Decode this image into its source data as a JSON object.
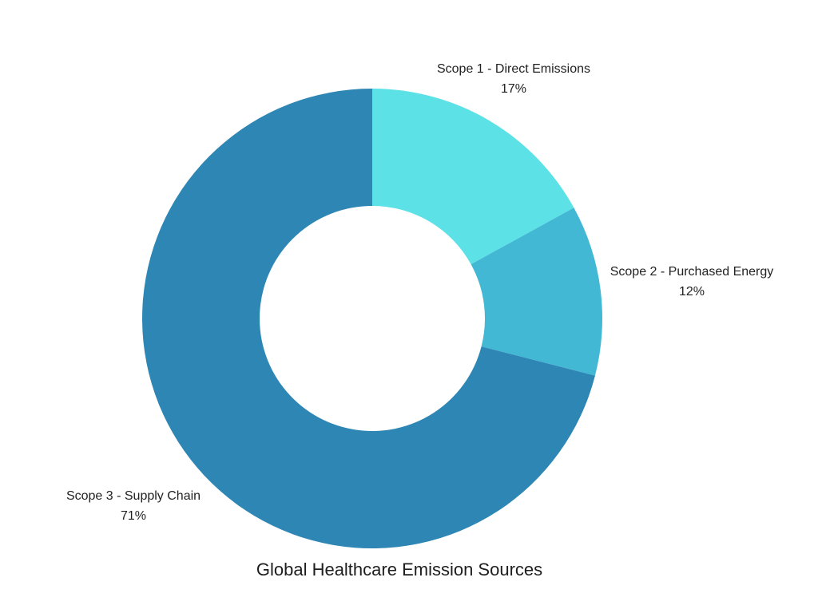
{
  "page": {
    "background_color": "#ffffff",
    "text_color": "#222222"
  },
  "chart_data": {
    "type": "pie",
    "subtype": "donut",
    "title": "Global Healthcare Emission Sources",
    "categories": [
      "Scope 1 - Direct Emissions",
      "Scope 2 - Purchased Energy",
      "Scope 3 - Supply Chain"
    ],
    "values": [
      17,
      12,
      71
    ],
    "value_labels": [
      "17%",
      "12%",
      "71%"
    ],
    "unit": "percent",
    "colors": [
      "#5CE1E6",
      "#42B8D4",
      "#2D86B4"
    ],
    "start_angle_deg": 0,
    "direction": "clockwise",
    "inner_radius_ratio": 0.49,
    "legend_position": "none",
    "label_placement": "outside"
  }
}
